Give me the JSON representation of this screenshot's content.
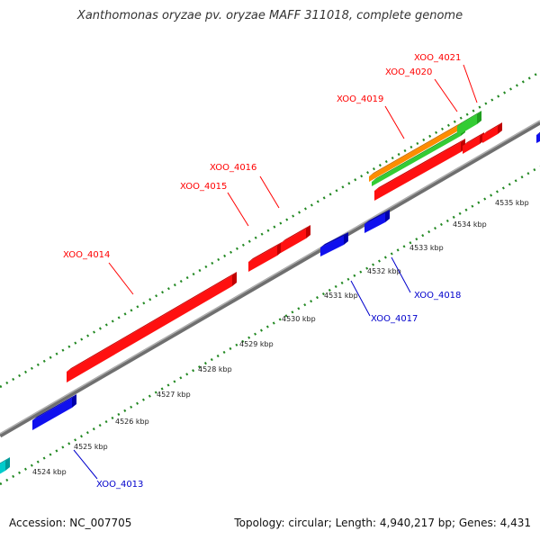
{
  "title": "Xanthomonas oryzae pv. oryzae MAFF 311018, complete genome",
  "footer": {
    "accession": "Accession: NC_007705",
    "summary": "Topology: circular; Length: 4,940,217 bp; Genes: 4,431"
  },
  "colors": {
    "plus_gene": "#ff0000",
    "minus_gene": "#0000ee",
    "rna_gene_a": "#ff8c00",
    "rna_gene_b": "#33cc33",
    "partial_gene": "#00cccc",
    "backbone": "#888888",
    "tick": "#228822",
    "plus_label": "#ff0000",
    "minus_label": "#0000cc"
  },
  "kbp_labels": [
    "4524 kbp",
    "4525 kbp",
    "4526 kbp",
    "4527 kbp",
    "4528 kbp",
    "4529 kbp",
    "4530 kbp",
    "4531 kbp",
    "4532 kbp",
    "4533 kbp",
    "4534 kbp",
    "4535 kbp"
  ],
  "genes": [
    {
      "id": "XOO_4013",
      "strand": "minus"
    },
    {
      "id": "XOO_4014",
      "strand": "plus"
    },
    {
      "id": "XOO_4015",
      "strand": "plus"
    },
    {
      "id": "XOO_4016",
      "strand": "plus"
    },
    {
      "id": "XOO_4017",
      "strand": "minus"
    },
    {
      "id": "XOO_4018",
      "strand": "minus"
    },
    {
      "id": "XOO_4019",
      "strand": "plus"
    },
    {
      "id": "XOO_4020",
      "strand": "plus"
    },
    {
      "id": "XOO_4021",
      "strand": "plus"
    }
  ]
}
